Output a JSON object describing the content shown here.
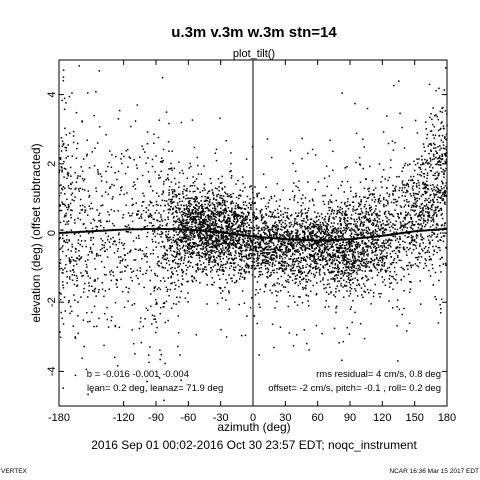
{
  "chart_data": {
    "type": "scatter",
    "title": "u.3m v.3m w.3m stn=14",
    "subtitle": "plot_tilt()",
    "xlabel": "azimuth (deg)",
    "ylabel": "elevation (deg)  (offset subtracted)",
    "xlim": [
      -180,
      180
    ],
    "ylim": [
      -5,
      5
    ],
    "x_ticks": [
      -180,
      -120,
      -90,
      -60,
      -30,
      0,
      30,
      60,
      90,
      120,
      150,
      180
    ],
    "x_tick_labels": [
      "-180",
      "-120",
      "-90",
      "-60",
      "-30",
      "0",
      "30",
      "60",
      "90",
      "120",
      "150",
      "180"
    ],
    "y_ticks": [
      -4,
      -2,
      0,
      2,
      4
    ],
    "y_tick_labels": [
      "-4",
      "-2",
      "0",
      "2",
      "4"
    ],
    "grid": false,
    "reference_lines": {
      "vertical_x": 0
    },
    "fit_curve": {
      "x": [
        -180,
        -150,
        -120,
        -90,
        -60,
        -30,
        0,
        30,
        60,
        90,
        120,
        150,
        180
      ],
      "y": [
        0.0,
        0.05,
        0.1,
        0.12,
        0.1,
        0.02,
        -0.1,
        -0.18,
        -0.22,
        -0.18,
        -0.08,
        0.05,
        0.12
      ]
    },
    "scatter_density": {
      "x": [
        -180,
        -165,
        -150,
        -135,
        -120,
        -105,
        -90,
        -75,
        -60,
        -45,
        -30,
        -15,
        0,
        15,
        30,
        45,
        60,
        75,
        90,
        105,
        120,
        135,
        150,
        165,
        180
      ],
      "y_center": [
        0.5,
        0.2,
        0.0,
        0.0,
        0.1,
        0.1,
        -0.4,
        0.05,
        0.15,
        0.1,
        0.05,
        0.0,
        -0.15,
        -0.3,
        -0.35,
        -0.35,
        -0.25,
        -0.35,
        -0.4,
        -0.2,
        -0.1,
        0.1,
        0.4,
        1.1,
        1.4
      ],
      "y_spread": [
        1.8,
        1.7,
        1.5,
        1.4,
        1.3,
        1.5,
        1.6,
        0.9,
        0.6,
        0.55,
        0.6,
        0.6,
        0.6,
        0.55,
        0.6,
        0.65,
        0.55,
        0.6,
        0.7,
        0.7,
        0.8,
        0.9,
        0.9,
        1.0,
        1.1
      ],
      "relative_density": [
        0.8,
        0.5,
        0.35,
        0.3,
        0.3,
        0.3,
        0.5,
        0.8,
        1.2,
        1.3,
        1.35,
        1.1,
        0.9,
        0.85,
        0.85,
        0.9,
        0.95,
        1.05,
        1.1,
        0.9,
        0.7,
        0.6,
        0.7,
        0.9,
        1.1
      ]
    },
    "stats_left": {
      "line1": "b = -0.016 -0.001 -0.004",
      "line2": "lean= 0.2 deg, leanaz= 71.9 deg"
    },
    "stats_right": {
      "line1": "rms residual= 4 cm/s, 0.8 deg",
      "line2": "offset= -2 cm/s, pitch= -0.1 , roll= 0.2 deg"
    }
  },
  "footer": {
    "time_range": "2016 Sep 01 00:02-2016 Oct 30 23:57 EDT; noqc_instrument",
    "left_corner": "VERTEX",
    "right_corner": "NCAR 16:36 Mar 15 2017 EDT"
  }
}
